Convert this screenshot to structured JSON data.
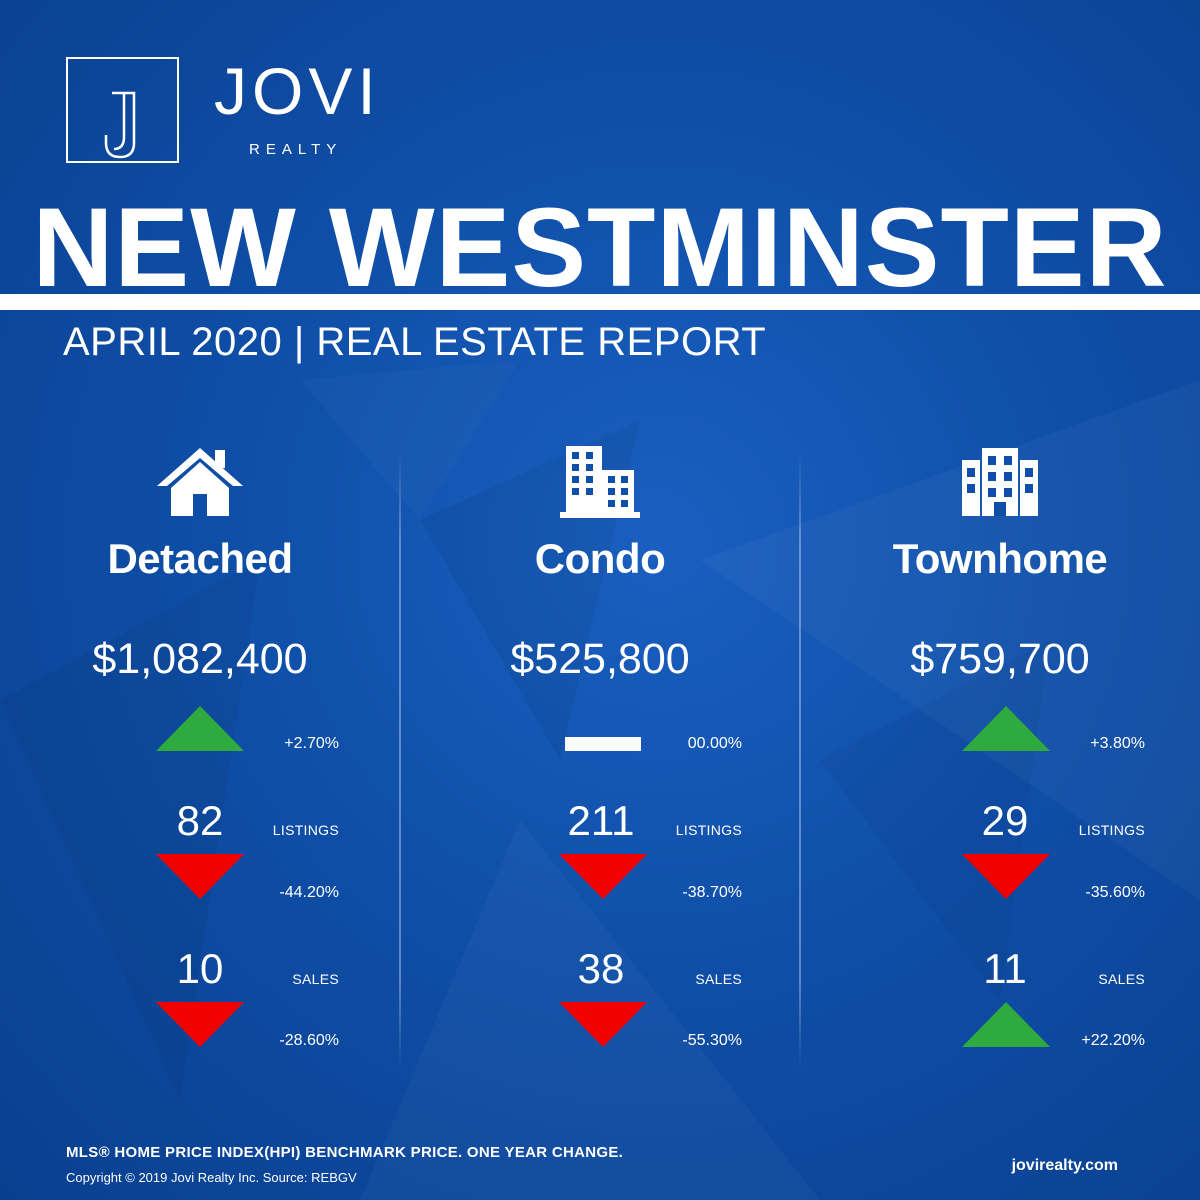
{
  "brand": {
    "name": "JOVI",
    "sub": "REALTY",
    "logo_letter": "J"
  },
  "title": "NEW WESTMINSTER",
  "subtitle": "APRIL 2020 | REAL ESTATE REPORT",
  "colors": {
    "background": "#0f4fa8",
    "up": "#2eaa3f",
    "down": "#f20000",
    "neutral": "#ffffff"
  },
  "columns": [
    {
      "key": "detached",
      "icon": "house-icon",
      "name": "Detached",
      "price": "$1,082,400",
      "price_change": {
        "text": "+2.70%",
        "direction": "up"
      },
      "listings": {
        "count": "82",
        "label": "LISTINGS",
        "change": "-44.20%",
        "direction": "down"
      },
      "sales": {
        "count": "10",
        "label": "SALES",
        "change": "-28.60%",
        "direction": "down"
      }
    },
    {
      "key": "condo",
      "icon": "condo-building-icon",
      "name": "Condo",
      "price": "$525,800",
      "price_change": {
        "text": "00.00%",
        "direction": "flat"
      },
      "listings": {
        "count": "211",
        "label": "LISTINGS",
        "change": "-38.70%",
        "direction": "down"
      },
      "sales": {
        "count": "38",
        "label": "SALES",
        "change": "-55.30%",
        "direction": "down"
      }
    },
    {
      "key": "townhome",
      "icon": "townhome-building-icon",
      "name": "Townhome",
      "price": "$759,700",
      "price_change": {
        "text": "+3.80%",
        "direction": "up"
      },
      "listings": {
        "count": "29",
        "label": "LISTINGS",
        "change": "-35.60%",
        "direction": "down"
      },
      "sales": {
        "count": "11",
        "label": "SALES",
        "change": "+22.20%",
        "direction": "up"
      }
    }
  ],
  "footer": {
    "note": "MLS® HOME PRICE INDEX(HPI) BENCHMARK PRICE. ONE YEAR CHANGE.",
    "copyright": "Copyright © 2019 Jovi Realty Inc. Source: REBGV",
    "url": "jovirealty.com"
  }
}
